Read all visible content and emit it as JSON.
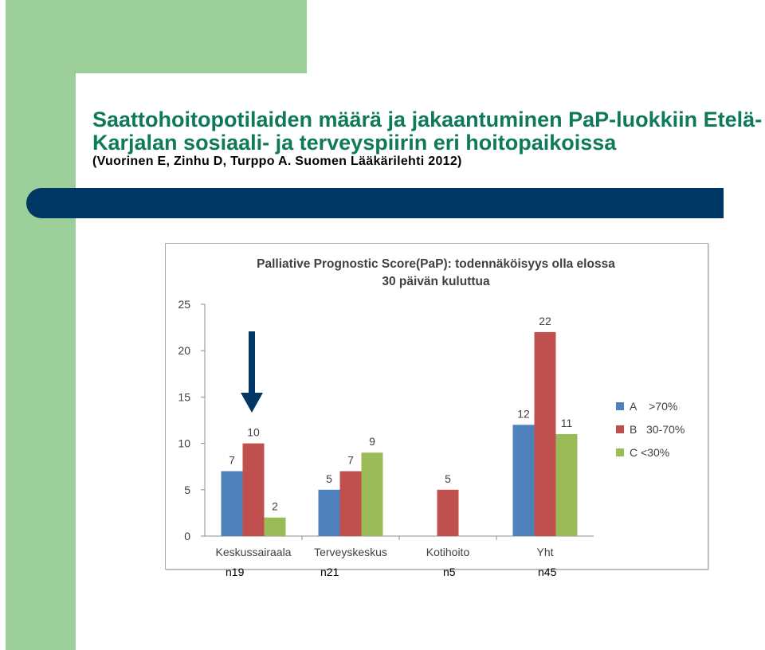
{
  "slide": {
    "title": "Saattohoitopotilaiden määrä ja jakaantuminen PaP-luokkiin Etelä-Karjalan sosiaali- ja terveyspiirin eri hoitopaikoissa",
    "subtitle": "(Vuorinen E, Zinhu D, Turppo A. Suomen Lääkärilehti 2012)"
  },
  "colors": {
    "accent_green": "#9ccf9a",
    "title_green": "#0f7a5a",
    "band_navy": "#003764",
    "arrow_navy": "#003764"
  },
  "n_labels": [
    "n19",
    "n21",
    "n5",
    "n45"
  ],
  "chart_data": {
    "type": "bar",
    "title_line1": "Palliative Prognostic Score(PaP): todennäköisyys olla elossa",
    "title_line2": "30 päivän kuluttua",
    "categories": [
      "Keskussairaala",
      "Terveyskeskus",
      "Kotihoito",
      "Yht"
    ],
    "series": [
      {
        "name": "A    >70%",
        "color": "#4f81bd",
        "values": [
          7,
          5,
          null,
          12
        ]
      },
      {
        "name": "B   30-70%",
        "color": "#c0504d",
        "values": [
          10,
          7,
          5,
          22
        ]
      },
      {
        "name": "C <30%",
        "color": "#9bbb59",
        "values": [
          2,
          9,
          null,
          11
        ]
      }
    ],
    "yticks": [
      "0",
      "5",
      "10",
      "15",
      "20",
      "25"
    ],
    "ylim": [
      0,
      25
    ],
    "grid": false,
    "legend": "right"
  }
}
